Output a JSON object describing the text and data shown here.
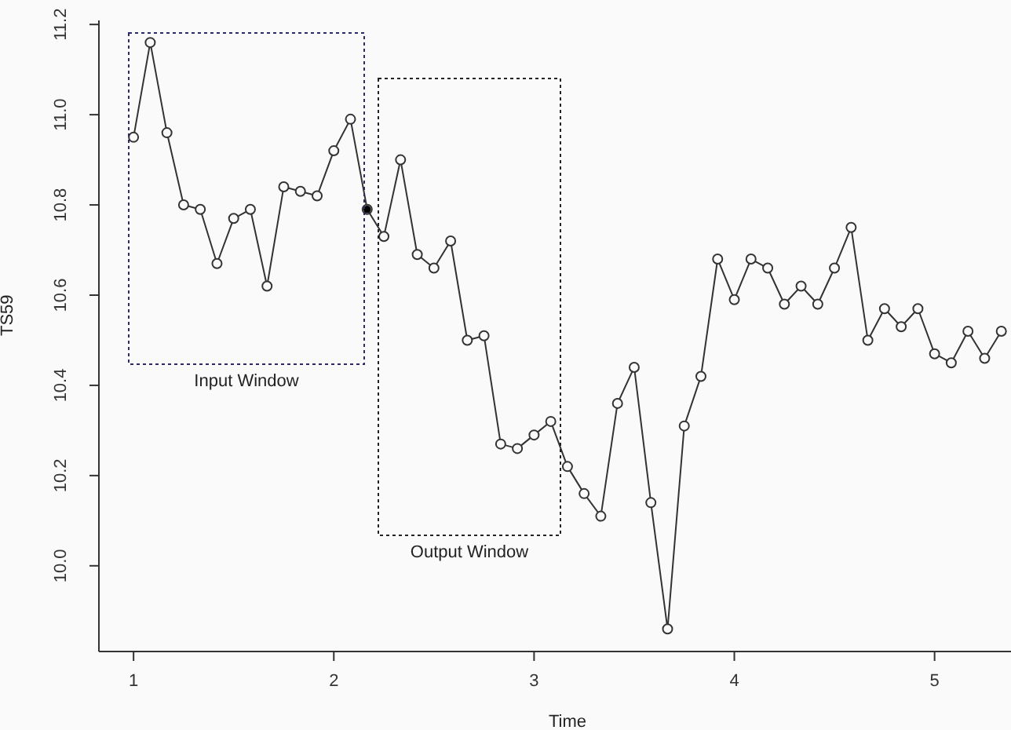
{
  "chart_data": {
    "type": "line",
    "xlabel": "Time",
    "ylabel": "TS59",
    "xlim": [
      0.827,
      5.507
    ],
    "xticks": [
      1,
      2,
      3,
      4,
      5
    ],
    "ylim": [
      9.81,
      11.209
    ],
    "yticks": [
      {
        "value": 10,
        "label": "10.0"
      },
      10.2,
      10.4,
      10.6,
      10.8,
      {
        "value": 11,
        "label": "11.0"
      },
      11.2
    ],
    "marker": "circle",
    "series": [
      {
        "color": "#333333",
        "x": [
          1,
          1.0833,
          1.1667,
          1.25,
          1.3333,
          1.4167,
          1.5,
          1.5833,
          1.6667,
          1.75,
          1.8333,
          1.9167,
          2,
          2.0833,
          2.1667,
          2.25,
          2.3333,
          2.4167,
          2.5,
          2.5833,
          2.6667,
          2.75,
          2.8333,
          2.9167,
          3,
          3.0833,
          3.1667,
          3.25,
          3.3333,
          3.4167,
          3.5,
          3.5833,
          3.6667,
          3.75,
          3.8333,
          3.9167,
          4,
          4.0833,
          4.1667,
          4.25,
          4.3333,
          4.4167,
          4.5,
          4.5833,
          4.6667,
          4.75,
          4.8333,
          4.9167,
          5,
          5.0833,
          5.1667,
          5.25,
          5.3333
        ],
        "values": [
          10.95,
          11.16,
          10.96,
          10.8,
          10.79,
          10.67,
          10.77,
          10.79,
          10.62,
          10.84,
          10.83,
          10.82,
          10.92,
          10.99,
          10.79,
          10.73,
          10.9,
          10.69,
          10.66,
          10.72,
          10.5,
          10.51,
          10.27,
          10.26,
          10.29,
          10.32,
          10.22,
          10.16,
          10.11,
          10.36,
          10.44,
          10.14,
          9.86,
          10.31,
          10.42,
          10.68,
          10.59,
          10.68,
          10.66,
          10.58,
          10.62,
          10.58,
          10.66,
          10.75,
          10.5,
          10.57,
          10.53,
          10.57,
          10.47,
          10.45,
          10.52,
          10.46,
          10.52
        ]
      },
      {
        "type": "scatter",
        "color": "#000000",
        "x": [
          2.1667
        ],
        "values": [
          10.79
        ]
      }
    ],
    "annotations": [
      "Input Window",
      "Output Window"
    ]
  }
}
